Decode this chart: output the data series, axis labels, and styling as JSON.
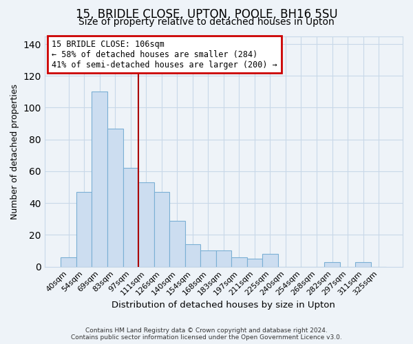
{
  "title": "15, BRIDLE CLOSE, UPTON, POOLE, BH16 5SU",
  "subtitle": "Size of property relative to detached houses in Upton",
  "xlabel": "Distribution of detached houses by size in Upton",
  "ylabel": "Number of detached properties",
  "footer_line1": "Contains HM Land Registry data © Crown copyright and database right 2024.",
  "footer_line2": "Contains public sector information licensed under the Open Government Licence v3.0.",
  "bin_labels": [
    "40sqm",
    "54sqm",
    "69sqm",
    "83sqm",
    "97sqm",
    "111sqm",
    "126sqm",
    "140sqm",
    "154sqm",
    "168sqm",
    "183sqm",
    "197sqm",
    "211sqm",
    "225sqm",
    "240sqm",
    "254sqm",
    "268sqm",
    "282sqm",
    "297sqm",
    "311sqm",
    "325sqm"
  ],
  "bar_values": [
    6,
    47,
    110,
    87,
    62,
    53,
    47,
    29,
    14,
    10,
    10,
    6,
    5,
    8,
    0,
    0,
    0,
    3,
    0,
    3,
    0
  ],
  "bar_color": "#ccddf0",
  "bar_edge_color": "#7aafd4",
  "vline_x_index": 4.5,
  "vline_color": "#aa0000",
  "annotation_text": "15 BRIDLE CLOSE: 106sqm\n← 58% of detached houses are smaller (284)\n41% of semi-detached houses are larger (200) →",
  "annotation_box_color": "#ffffff",
  "annotation_box_edge": "#cc0000",
  "ylim": [
    0,
    145
  ],
  "yticks": [
    0,
    20,
    40,
    60,
    80,
    100,
    120,
    140
  ],
  "grid_color": "#c8d8e8",
  "bg_color": "#eef3f8",
  "title_fontsize": 12,
  "subtitle_fontsize": 10,
  "tick_fontsize": 8
}
